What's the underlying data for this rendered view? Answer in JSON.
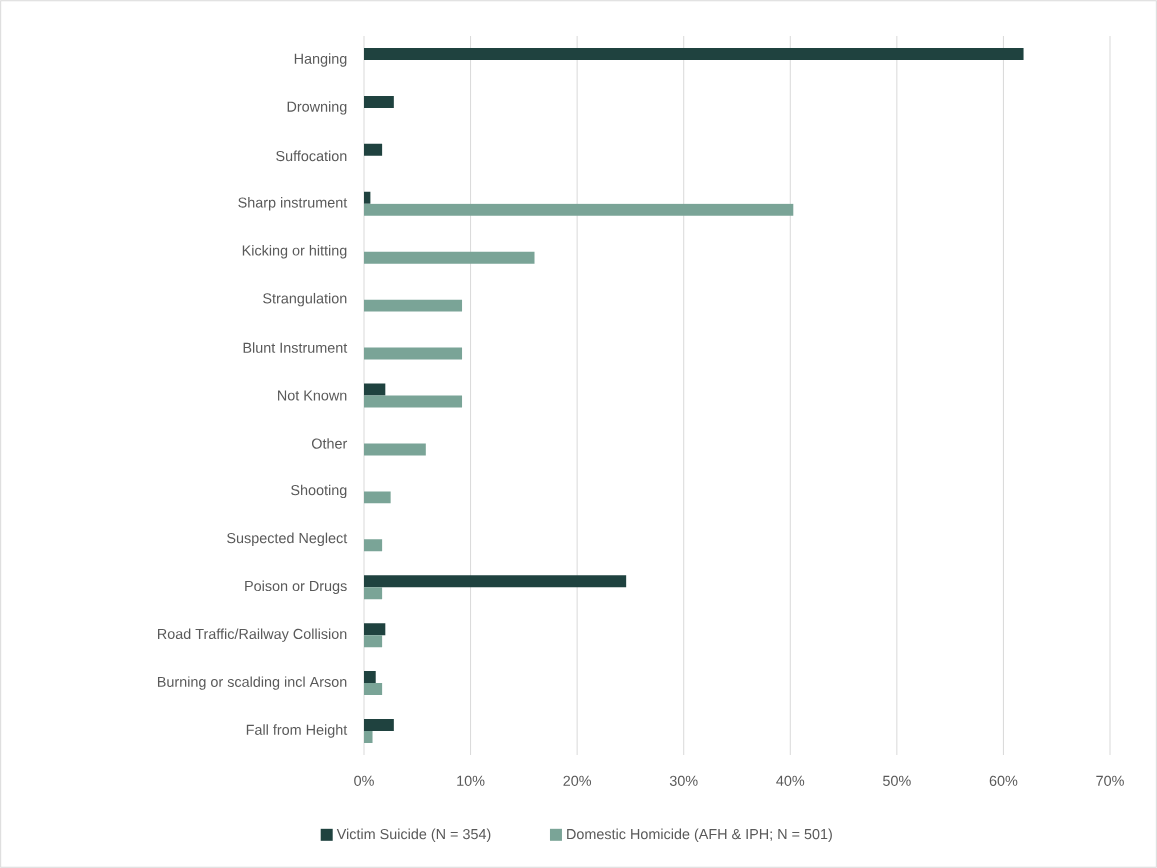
{
  "chart_data": {
    "type": "bar",
    "orientation": "horizontal",
    "categories": [
      "Hanging",
      "Drowning",
      "Suffocation",
      "Sharp instrument",
      "Kicking or hitting",
      "Strangulation",
      "Blunt Instrument",
      "Not Known",
      "Other",
      "Shooting",
      "Suspected Neglect",
      "Poison or Drugs",
      "Road Traffic/Railway Collision",
      "Burning or scalding incl Arson",
      "Fall from Height"
    ],
    "series": [
      {
        "name": "Victim Suicide (N = 354)",
        "color": "#1f423f",
        "values": [
          61.9,
          2.8,
          1.7,
          0.6,
          null,
          null,
          null,
          2.0,
          null,
          null,
          null,
          24.6,
          2.0,
          1.1,
          2.8
        ]
      },
      {
        "name": "Domestic Homicide (AFH & IPH; N = 501)",
        "color": "#7aa497",
        "values": [
          null,
          null,
          null,
          40.3,
          16.0,
          9.2,
          9.2,
          9.2,
          5.8,
          2.5,
          1.7,
          1.7,
          1.7,
          1.7,
          0.8
        ]
      }
    ],
    "xlim": [
      0,
      70
    ],
    "xticks": [
      {
        "value": 0,
        "label": "0%"
      },
      {
        "value": 10,
        "label": "10%"
      },
      {
        "value": 20,
        "label": "20%"
      },
      {
        "value": 30,
        "label": "30%"
      },
      {
        "value": 40,
        "label": "40%"
      },
      {
        "value": 50,
        "label": "50%"
      },
      {
        "value": 60,
        "label": "60%"
      },
      {
        "value": 70,
        "label": "70%"
      }
    ],
    "grid": "x",
    "legend": "bottom"
  }
}
